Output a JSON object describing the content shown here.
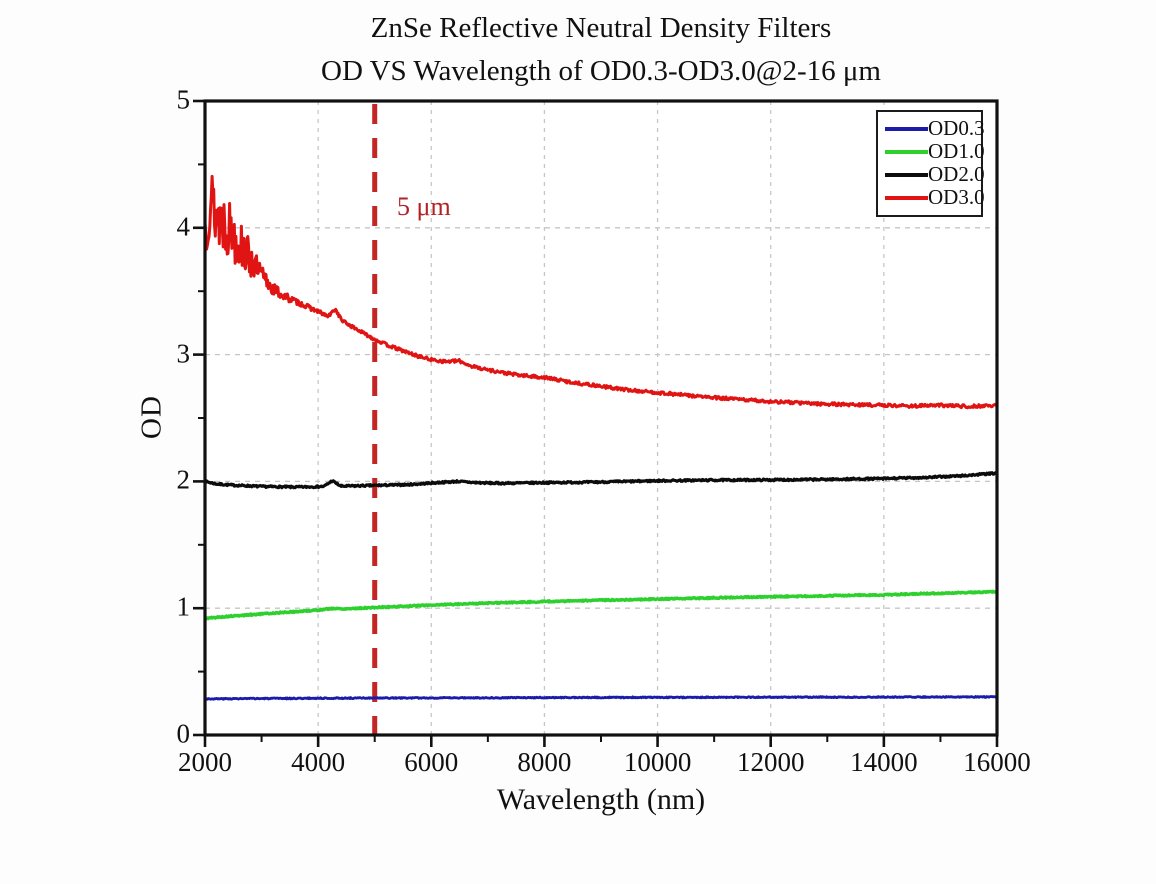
{
  "chart_data": {
    "type": "line",
    "title_lines": [
      "ZnSe Reflective Neutral Density Filters",
      "OD VS Wavelength of OD0.3-OD3.0@2-16 μm"
    ],
    "xlabel": "Wavelength (nm)",
    "ylabel": "OD",
    "xlim": [
      2000,
      16000
    ],
    "ylim": [
      0,
      5
    ],
    "xticks": [
      2000,
      4000,
      6000,
      8000,
      10000,
      12000,
      14000,
      16000
    ],
    "yticks": [
      0,
      1,
      2,
      3,
      4,
      5
    ],
    "x_minor_step": 1000,
    "y_minor_step": 0.5,
    "grid": {
      "major": true,
      "style": "dashed",
      "color": "#c6c6c6"
    },
    "legend": {
      "position": "top-right",
      "border_color": "#1b1b1b",
      "entries": [
        "OD0.3",
        "OD1.0",
        "OD2.0",
        "OD3.0"
      ]
    },
    "annotations": [
      {
        "type": "vline",
        "x": 5000,
        "label": "5 μm",
        "label_color": "#b22222",
        "line_color": "#c42525",
        "line_style": "dashed"
      }
    ],
    "series": [
      {
        "name": "OD0.3",
        "color": "#1c1caa",
        "width": 2.8,
        "seed": 3,
        "noise": 0.004,
        "points": [
          [
            2000,
            0.285
          ],
          [
            4000,
            0.29
          ],
          [
            8000,
            0.295
          ],
          [
            12000,
            0.298
          ],
          [
            16000,
            0.3
          ]
        ]
      },
      {
        "name": "OD1.0",
        "color": "#2ed02e",
        "width": 3.4,
        "seed": 5,
        "noise": 0.005,
        "points": [
          [
            2000,
            0.92
          ],
          [
            2500,
            0.938
          ],
          [
            3000,
            0.955
          ],
          [
            3500,
            0.97
          ],
          [
            4000,
            0.985
          ],
          [
            4250,
            0.998
          ],
          [
            4450,
            0.995
          ],
          [
            5000,
            1.005
          ],
          [
            5500,
            1.015
          ],
          [
            6000,
            1.025
          ],
          [
            6500,
            1.033
          ],
          [
            7000,
            1.04
          ],
          [
            8000,
            1.052
          ],
          [
            9000,
            1.063
          ],
          [
            10000,
            1.072
          ],
          [
            11000,
            1.082
          ],
          [
            12000,
            1.09
          ],
          [
            13000,
            1.098
          ],
          [
            14000,
            1.106
          ],
          [
            15000,
            1.118
          ],
          [
            16000,
            1.13
          ]
        ]
      },
      {
        "name": "OD2.0",
        "color": "#0c0c0c",
        "width": 3.2,
        "seed": 7,
        "noise": 0.007,
        "points": [
          [
            2000,
            2.0
          ],
          [
            2200,
            1.98
          ],
          [
            2500,
            1.97
          ],
          [
            3000,
            1.96
          ],
          [
            3600,
            1.955
          ],
          [
            4100,
            1.96
          ],
          [
            4250,
            2.005
          ],
          [
            4400,
            1.962
          ],
          [
            5000,
            1.968
          ],
          [
            5600,
            1.975
          ],
          [
            6100,
            1.99
          ],
          [
            6450,
            2.0
          ],
          [
            6800,
            1.99
          ],
          [
            7200,
            1.985
          ],
          [
            8000,
            1.99
          ],
          [
            9000,
            1.995
          ],
          [
            10000,
            2.005
          ],
          [
            11000,
            2.01
          ],
          [
            12000,
            2.012
          ],
          [
            13000,
            2.016
          ],
          [
            14000,
            2.022
          ],
          [
            14800,
            2.032
          ],
          [
            15400,
            2.045
          ],
          [
            16000,
            2.065
          ]
        ]
      },
      {
        "name": "OD3.0",
        "color": "#e11414",
        "width": 3.0,
        "seed": 13,
        "noise_profile": [
          [
            2000,
            0.3
          ],
          [
            2300,
            0.27
          ],
          [
            2600,
            0.2
          ],
          [
            2900,
            0.11
          ],
          [
            3200,
            0.05
          ],
          [
            3600,
            0.022
          ],
          [
            4200,
            0.012
          ],
          [
            16000,
            0.012
          ]
        ],
        "points": [
          [
            2000,
            4.0
          ],
          [
            2080,
            4.25
          ],
          [
            2200,
            4.1
          ],
          [
            2350,
            4.05
          ],
          [
            2500,
            3.95
          ],
          [
            2650,
            3.85
          ],
          [
            2800,
            3.75
          ],
          [
            3000,
            3.62
          ],
          [
            3200,
            3.52
          ],
          [
            3400,
            3.46
          ],
          [
            3600,
            3.42
          ],
          [
            3800,
            3.38
          ],
          [
            4000,
            3.34
          ],
          [
            4180,
            3.3
          ],
          [
            4300,
            3.36
          ],
          [
            4420,
            3.27
          ],
          [
            4600,
            3.22
          ],
          [
            4800,
            3.17
          ],
          [
            5000,
            3.12
          ],
          [
            5250,
            3.07
          ],
          [
            5500,
            3.03
          ],
          [
            5750,
            2.99
          ],
          [
            6000,
            2.96
          ],
          [
            6250,
            2.945
          ],
          [
            6500,
            2.95
          ],
          [
            6700,
            2.91
          ],
          [
            7000,
            2.88
          ],
          [
            7300,
            2.855
          ],
          [
            7600,
            2.835
          ],
          [
            8000,
            2.82
          ],
          [
            8500,
            2.78
          ],
          [
            9000,
            2.75
          ],
          [
            9500,
            2.72
          ],
          [
            10000,
            2.7
          ],
          [
            10500,
            2.68
          ],
          [
            11000,
            2.66
          ],
          [
            11500,
            2.645
          ],
          [
            12000,
            2.63
          ],
          [
            12500,
            2.62
          ],
          [
            13000,
            2.61
          ],
          [
            13500,
            2.605
          ],
          [
            14000,
            2.6
          ],
          [
            14500,
            2.595
          ],
          [
            15000,
            2.6
          ],
          [
            15500,
            2.592
          ],
          [
            16000,
            2.6
          ]
        ]
      }
    ]
  }
}
